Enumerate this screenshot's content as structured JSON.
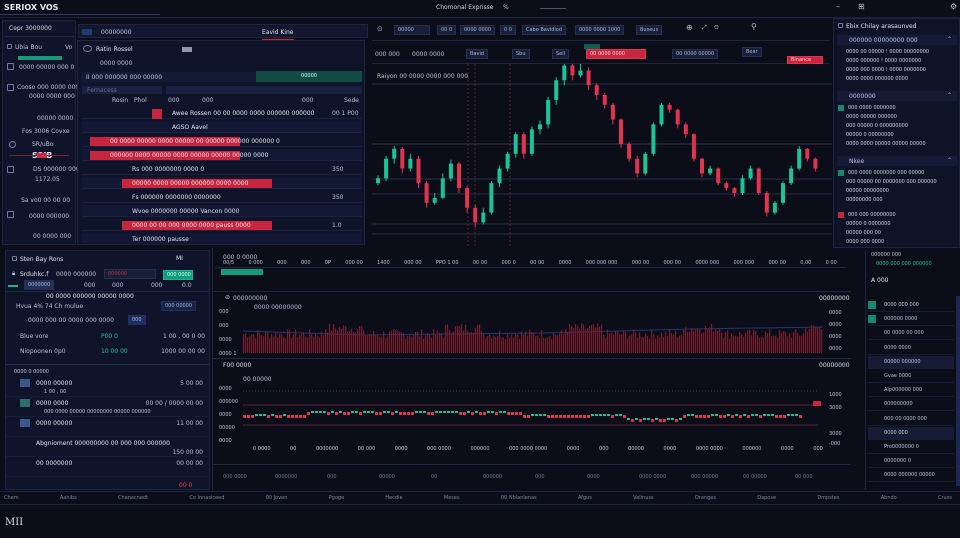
{
  "app": {
    "title": "SERIOX VOS",
    "center_title": "Chomonal Exprisse",
    "center_suffix": "%"
  },
  "sidebar": {
    "header": "Cepr 3000000",
    "items": [
      {
        "label": "Ubia Bou",
        "value": "Vo"
      },
      {
        "label": "0000 00000 000 0",
        "value": ""
      },
      {
        "label": "Cooso 000 0000 000",
        "value": "0000 0000 000"
      },
      {
        "label": "00000 0000",
        "value": ""
      },
      {
        "label": "Fos 3006 Covxe",
        "value": ""
      },
      {
        "label": "SR/uBo",
        "value": "S3IB"
      },
      {
        "label": "DS 000000 000",
        "value": "1172.05"
      },
      {
        "label": "Sa vo0 00 00 00",
        "value": ""
      },
      {
        "label": "0000 000000",
        "value": "00 0000 000"
      }
    ]
  },
  "orderbook": {
    "tabs": [
      "00000000",
      "Eavid Kine"
    ],
    "title": "Ratin Rossel",
    "subtitle": "0000 0000",
    "search": "Fernacess",
    "filter": "II 000 000000 000 00000",
    "action": "00000",
    "columns": [
      "Rosin",
      "Phol",
      "000",
      "000",
      "000",
      "Sede"
    ],
    "rows": [
      {
        "text": "Awee Rossen 00 00 0000 0000 000000 000000",
        "value": "00 1 P00",
        "flag": "red"
      },
      {
        "text": "AGSO Aavel",
        "value": "",
        "flag": "none"
      },
      {
        "text": "00 0000 00000 0000 00000 00 00000 000000 000000 0",
        "value": "",
        "flag": "red"
      },
      {
        "text": "000000 0000 00000 0000 00000 00000 00000 0000",
        "value": "",
        "flag": "red"
      },
      {
        "text": "Rs 000 0000000 0000 0",
        "value": "350",
        "flag": "none"
      },
      {
        "text": "00000 0000 00000 000000 0000 0000",
        "value": "",
        "flag": "red"
      },
      {
        "text": "Fs 000000 0000000 0000000",
        "value": "350",
        "flag": "none"
      },
      {
        "text": "Wvoe 0000000 00000 Vancon 0000",
        "value": "",
        "flag": "none"
      },
      {
        "text": "0000 00 00 000 0000 0000 pauss 0000",
        "value": "1.0",
        "flag": "red"
      },
      {
        "text": "Ter 000000 pausse",
        "value": "",
        "flag": "none"
      }
    ]
  },
  "toolbar": {
    "items": [
      "00000",
      "00 0",
      "0000 0000",
      "0 0",
      "Cabo Bavidiod",
      "0000 0000 1000",
      "Buseus"
    ],
    "sub": [
      "000 000",
      "0000 0000",
      "Bavid",
      "Sbu",
      "Sell",
      "00 0000 00000",
      "Bear"
    ],
    "sell_label": "00 0000 0000",
    "buy_label": "Binance",
    "watch": "Raiyon 00 0000 0000 000 000"
  },
  "chart": {
    "colors": {
      "up": "#19c597",
      "down": "#e2334f",
      "grid": "#2a2f4a"
    },
    "x_labels": [
      "00/5",
      "0 000",
      "000",
      "000",
      "0P",
      "000 00",
      "1400",
      "000 00",
      "PPO 1 00",
      "00 00",
      "000 0",
      "00 00",
      "0000",
      "000 000 000",
      "000 00",
      "000 00",
      "0000 000",
      "000 000",
      "000 00",
      "0,00",
      "0 00"
    ],
    "candles": [
      [
        60,
        68,
        58,
        65
      ],
      [
        65,
        88,
        62,
        85
      ],
      [
        85,
        98,
        80,
        95
      ],
      [
        95,
        97,
        70,
        75
      ],
      [
        75,
        90,
        72,
        85
      ],
      [
        85,
        88,
        55,
        60
      ],
      [
        60,
        62,
        35,
        40
      ],
      [
        40,
        50,
        38,
        45
      ],
      [
        45,
        70,
        44,
        65
      ],
      [
        65,
        84,
        62,
        80
      ],
      [
        80,
        82,
        50,
        55
      ],
      [
        55,
        57,
        30,
        35
      ],
      [
        35,
        38,
        15,
        20
      ],
      [
        20,
        35,
        18,
        30
      ],
      [
        30,
        62,
        28,
        60
      ],
      [
        60,
        78,
        56,
        75
      ],
      [
        75,
        92,
        72,
        90
      ],
      [
        90,
        112,
        86,
        110
      ],
      [
        110,
        112,
        85,
        90
      ],
      [
        90,
        118,
        88,
        115
      ],
      [
        115,
        124,
        110,
        120
      ],
      [
        120,
        148,
        116,
        145
      ],
      [
        145,
        168,
        140,
        165
      ],
      [
        165,
        185,
        160,
        180
      ],
      [
        180,
        184,
        165,
        170
      ],
      [
        170,
        182,
        168,
        175
      ],
      [
        175,
        178,
        155,
        160
      ],
      [
        160,
        162,
        145,
        150
      ],
      [
        150,
        152,
        136,
        140
      ],
      [
        140,
        142,
        120,
        125
      ],
      [
        125,
        126,
        96,
        100
      ],
      [
        100,
        102,
        82,
        85
      ],
      [
        85,
        88,
        66,
        70
      ],
      [
        70,
        92,
        68,
        90
      ],
      [
        90,
        122,
        88,
        120
      ],
      [
        120,
        142,
        118,
        140
      ],
      [
        140,
        142,
        132,
        135
      ],
      [
        135,
        136,
        116,
        120
      ],
      [
        120,
        122,
        106,
        110
      ],
      [
        110,
        111,
        82,
        85
      ],
      [
        85,
        86,
        66,
        70
      ],
      [
        70,
        78,
        68,
        75
      ],
      [
        75,
        76,
        58,
        60
      ],
      [
        60,
        62,
        52,
        55
      ],
      [
        55,
        56,
        46,
        50
      ],
      [
        50,
        68,
        48,
        65
      ],
      [
        65,
        78,
        63,
        75
      ],
      [
        75,
        76,
        48,
        50
      ],
      [
        50,
        52,
        26,
        30
      ],
      [
        30,
        42,
        28,
        40
      ],
      [
        40,
        62,
        38,
        60
      ],
      [
        60,
        78,
        58,
        75
      ],
      [
        75,
        98,
        73,
        95
      ],
      [
        95,
        96,
        82,
        85
      ],
      [
        85,
        86,
        72,
        75
      ]
    ]
  },
  "rightpanel": {
    "header": "Ebix Chilay arasaunved",
    "sections": [
      {
        "title": "000000 00000000 000",
        "rows": [
          "0000 00 00000 ! 0000 00000000",
          "0000 000000 ! 0000 0000000",
          "0000 000 0000 ! 0000 0000000",
          "0000 0000 000000 0000"
        ]
      },
      {
        "title": "0000000",
        "rows": [
          "000 0000 0000000",
          "0000 00000 000000",
          "000 00000 0 000000000",
          "00000 0 00000000",
          "0000 0000 00000 00000 00000"
        ]
      },
      {
        "title": "Nkee",
        "rows": [
          "000 0000 0000000 000 00000",
          "000 00000 00 0000000 000 000000",
          "00000 00000000",
          "00000000 000"
        ]
      },
      {
        "title": "",
        "rows": [
          "000 000 00000000",
          "00000 0 0000000",
          "00000 000 00",
          "0000 000 0000"
        ]
      }
    ]
  },
  "position": {
    "title": "Sten Bay Rons",
    "badge": "MI",
    "symbol": "Srduhkc.f",
    "dropdown1": "0000 000000",
    "dropdown2": "000000",
    "buy": "000 0000",
    "tabs": [
      "0000000",
      "000",
      "000",
      "000",
      "0.0"
    ],
    "label": "Hvua 4% 74 Ch mulue",
    "heading": "00 0000 000000 00000 0000",
    "tag": "000 00000",
    "line": "0000 000 00 0000 000 0000",
    "tagbtn": "000",
    "rows": [
      {
        "label": "Blue vore",
        "mid": "P00 0",
        "value": "1 00 , 00 0 00"
      },
      {
        "label": "Niopoonen 0p0",
        "mid": "10 00 00",
        "value": "1000 00 00 00"
      }
    ],
    "list_title": "0000 0 00000",
    "list": [
      {
        "label": "0000 00000",
        "sub": "1 00 , 00",
        "value": "5 00 00"
      },
      {
        "label": "0000 0000",
        "sub": "000 0000 00000 00000000 00000 000000",
        "value": "00 00 / 0000 00 00"
      },
      {
        "label": "0000 00000",
        "sub": "",
        "value": "11 00 00"
      },
      {
        "label": "Abgnioment 000000000 00 000 000 000000",
        "sub": "",
        "value": "150 00 00"
      },
      {
        "label": "00 0000000",
        "sub": "",
        "value": "00 00 00"
      }
    ],
    "footer": "00 0"
  },
  "indicators": {
    "top_tab": "000 0 0000",
    "volume_title": "000000000",
    "volume_legend": "0000 00000000",
    "volume_y": [
      "000",
      "000",
      "0000",
      "0000 1"
    ],
    "volume_right": [
      "0000",
      "0000",
      "0000",
      "0000"
    ],
    "volume_value": "00000000",
    "osc_title": "F00 0000",
    "osc_legend": "00 00000",
    "osc_y": [
      "0000",
      "000000",
      "0000",
      "00000",
      "0000"
    ],
    "osc_right": [
      "1000",
      "3000",
      "3000",
      "-000"
    ],
    "osc_value": "00000000",
    "osc_x": [
      "0 0000",
      "00",
      "0000000",
      "00 000",
      "0000",
      "000 0000",
      "000000",
      "000 0000 0000",
      "0000",
      "000",
      "00000",
      "0000",
      "0000 0000",
      "000000",
      "0000",
      "000"
    ],
    "stats": [
      "000 0000",
      "0000000",
      "000",
      "00000",
      "00",
      "000000",
      "000",
      "0000",
      "0000 0000",
      "000 00000",
      "00 00000",
      "00 000"
    ]
  },
  "rightlower": {
    "header": "000000 000",
    "subheader": "0000 000 000 000000",
    "title": "A 000",
    "items": [
      "0000 000 000",
      "000000 0000",
      "00 0000 00 000",
      "0000 0000",
      "00000 000000",
      "Gvae 0000",
      "Alp000000 000",
      "000000000",
      "000 00 0000 000",
      "0000 000",
      "Pro0000000 0",
      "0000000 0",
      "0000 000000 00000"
    ]
  },
  "footer": {
    "tabs": [
      "Chem",
      "Aahibs",
      "Chanacnedt",
      "Co Innasiceed",
      "00 Joven",
      "Pgoge",
      "Hecdie",
      "Meses",
      "00 Nblanlenas",
      "Afgus",
      "Velinuss",
      "Oranges",
      "Dapose",
      "Dmpstes",
      "Abndo",
      "Cruss"
    ],
    "brand": "MII"
  }
}
